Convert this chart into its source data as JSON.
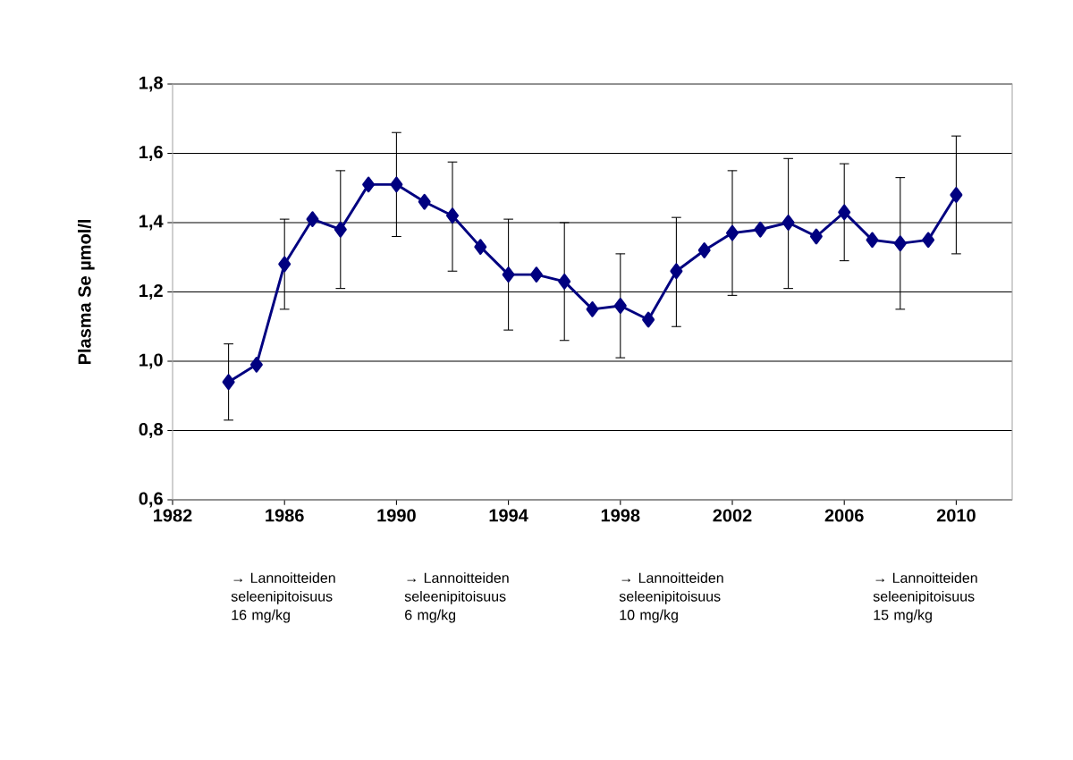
{
  "chart_data": {
    "type": "line",
    "ylabel": "Plasma Se µmol/l",
    "x": [
      1984,
      1985,
      1986,
      1987,
      1988,
      1989,
      1990,
      1991,
      1992,
      1993,
      1994,
      1995,
      1996,
      1997,
      1998,
      1999,
      2000,
      2001,
      2002,
      2003,
      2004,
      2005,
      2006,
      2007,
      2008,
      2009,
      2010
    ],
    "series": [
      {
        "color": "#000080",
        "values": [
          0.94,
          0.99,
          1.28,
          1.41,
          1.38,
          1.51,
          1.51,
          1.46,
          1.42,
          1.33,
          1.25,
          1.25,
          1.23,
          1.15,
          1.16,
          1.12,
          1.26,
          1.32,
          1.37,
          1.38,
          1.4,
          1.36,
          1.43,
          1.35,
          1.34,
          1.35,
          1.48
        ],
        "errors": [
          [
            0.83,
            1.05
          ],
          null,
          [
            1.15,
            1.41
          ],
          null,
          [
            1.21,
            1.55
          ],
          null,
          [
            1.36,
            1.66
          ],
          null,
          [
            1.26,
            1.575
          ],
          null,
          [
            1.09,
            1.41
          ],
          null,
          [
            1.06,
            1.4
          ],
          null,
          [
            1.01,
            1.31
          ],
          null,
          [
            1.1,
            1.415
          ],
          null,
          [
            1.19,
            1.55
          ],
          null,
          [
            1.21,
            1.585
          ],
          null,
          [
            1.29,
            1.57
          ],
          null,
          [
            1.15,
            1.53
          ],
          null,
          [
            1.31,
            1.65
          ]
        ]
      }
    ],
    "xlim": [
      1982,
      2012
    ],
    "xticks": [
      1982,
      1986,
      1990,
      1994,
      1998,
      2002,
      2006,
      2010
    ],
    "ylim": [
      0.6,
      1.8
    ],
    "yticks": [
      {
        "value": 0.6,
        "label": "0,6"
      },
      {
        "value": 0.8,
        "label": "0,8"
      },
      {
        "value": 1.0,
        "label": "1,0"
      },
      {
        "value": 1.2,
        "label": "1,2"
      },
      {
        "value": 1.4,
        "label": "1,4"
      },
      {
        "value": 1.6,
        "label": "1,6"
      },
      {
        "value": 1.8,
        "label": "1,8"
      }
    ],
    "grid": "y",
    "marker": "diamond",
    "line_style": "solid",
    "annotations": [
      "→ Lannoitteiden seleenipitoisuus 16 mg/kg",
      "→ Lannoitteiden seleenipitoisuus 6 mg/kg",
      "→ Lannoitteiden seleenipitoisuus 10 mg/kg",
      "→ Lannoitteiden seleenipitoisuus 15 mg/kg"
    ]
  }
}
